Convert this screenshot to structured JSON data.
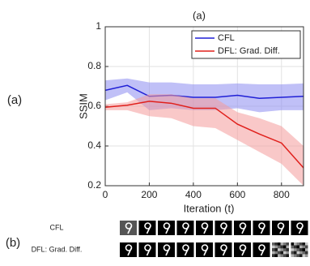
{
  "chart_data": {
    "type": "line",
    "title": "(a)",
    "xlabel": "Iteration (t)",
    "ylabel": "SSIM",
    "x": [
      0,
      100,
      200,
      300,
      400,
      500,
      600,
      700,
      800,
      900
    ],
    "xlim": [
      0,
      900
    ],
    "xticks": [
      0,
      200,
      400,
      600,
      800
    ],
    "ylim": [
      0.2,
      1
    ],
    "yticks": [
      0.2,
      0.4,
      0.6,
      0.8,
      1
    ],
    "grid": true,
    "legend": "top-right",
    "series": [
      {
        "name": "CFL",
        "color": "#1f1fd6",
        "band_color": "#8c8cf0",
        "values": [
          0.68,
          0.705,
          0.65,
          0.655,
          0.645,
          0.645,
          0.655,
          0.64,
          0.645,
          0.65
        ],
        "upper": [
          0.73,
          0.74,
          0.72,
          0.72,
          0.71,
          0.71,
          0.715,
          0.71,
          0.71,
          0.715
        ],
        "lower": [
          0.63,
          0.67,
          0.58,
          0.59,
          0.58,
          0.58,
          0.59,
          0.57,
          0.58,
          0.58
        ]
      },
      {
        "name": "DFL: Grad. Diff.",
        "color": "#e0201c",
        "band_color": "#f49a9a",
        "values": [
          0.595,
          0.605,
          0.625,
          0.615,
          0.59,
          0.59,
          0.51,
          0.46,
          0.415,
          0.29
        ],
        "upper": [
          0.61,
          0.62,
          0.66,
          0.66,
          0.64,
          0.64,
          0.57,
          0.54,
          0.5,
          0.4
        ],
        "lower": [
          0.58,
          0.58,
          0.55,
          0.54,
          0.5,
          0.49,
          0.43,
          0.37,
          0.31,
          0.2
        ]
      }
    ]
  },
  "side_label": "(a)",
  "panel_b": {
    "label": "(b)",
    "rows": [
      "CFL",
      "DFL: Grad. Diff."
    ]
  }
}
